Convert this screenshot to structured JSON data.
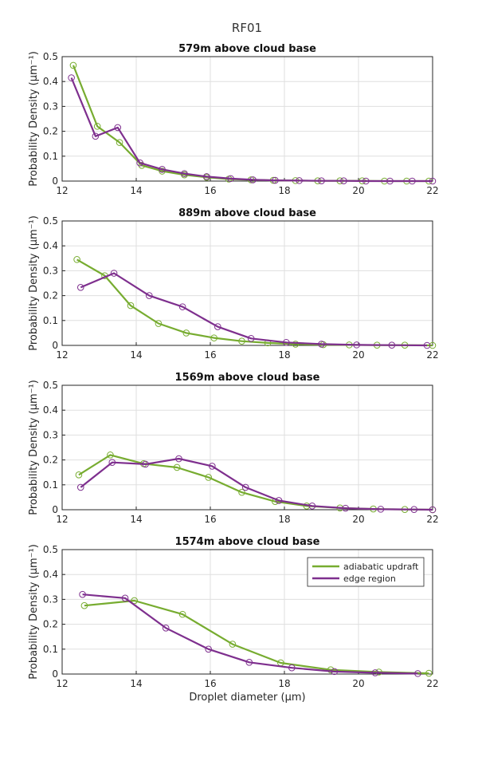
{
  "figure_title": "RF01",
  "chart_data": [
    {
      "type": "line",
      "title": "579m above cloud base",
      "ylabel": "Probability Density (μm⁻¹)",
      "xlabel": "",
      "xlim": [
        12,
        22
      ],
      "ylim": [
        0,
        0.5
      ],
      "xticks": [
        "12",
        "14",
        "16",
        "18",
        "20",
        "22"
      ],
      "yticks": [
        "0",
        "0.1",
        "0.2",
        "0.3",
        "0.4",
        "0.5"
      ],
      "grid": true,
      "series": [
        {
          "color": "#77AC30",
          "x": [
            12.3,
            12.95,
            13.55,
            14.15,
            14.7,
            15.3,
            15.9,
            16.5,
            17.1,
            17.7,
            18.3,
            18.9,
            19.5,
            20.1,
            20.7,
            21.3,
            21.9
          ],
          "y": [
            0.465,
            0.22,
            0.155,
            0.063,
            0.04,
            0.025,
            0.015,
            0.008,
            0.005,
            0.003,
            0.002,
            0.001,
            0.001,
            0.001,
            0.0,
            0.0,
            0.0
          ]
        },
        {
          "color": "#7E2F8E",
          "x": [
            12.25,
            12.9,
            13.5,
            14.1,
            14.7,
            15.3,
            15.9,
            16.55,
            17.15,
            17.75,
            18.4,
            19.0,
            19.6,
            20.2,
            20.85,
            21.45,
            22.0
          ],
          "y": [
            0.415,
            0.18,
            0.215,
            0.073,
            0.047,
            0.03,
            0.018,
            0.01,
            0.005,
            0.003,
            0.002,
            0.001,
            0.001,
            0.0,
            0.0,
            0.0,
            0.0
          ]
        }
      ]
    },
    {
      "type": "line",
      "title": "889m above cloud base",
      "ylabel": "Probability Density (μm⁻¹)",
      "xlabel": "",
      "xlim": [
        12,
        22
      ],
      "ylim": [
        0,
        0.5
      ],
      "xticks": [
        "12",
        "14",
        "16",
        "18",
        "20",
        "22"
      ],
      "yticks": [
        "0",
        "0.1",
        "0.2",
        "0.3",
        "0.4",
        "0.5"
      ],
      "grid": true,
      "series": [
        {
          "color": "#77AC30",
          "x": [
            12.4,
            13.15,
            13.85,
            14.6,
            15.35,
            16.1,
            16.85,
            17.55,
            18.3,
            19.05,
            19.75,
            20.5,
            21.25,
            22.0
          ],
          "y": [
            0.345,
            0.28,
            0.16,
            0.088,
            0.05,
            0.03,
            0.017,
            0.01,
            0.005,
            0.003,
            0.002,
            0.001,
            0.001,
            0.0
          ]
        },
        {
          "color": "#7E2F8E",
          "x": [
            12.5,
            13.4,
            14.35,
            15.25,
            16.2,
            17.1,
            18.05,
            19.0,
            19.95,
            20.9,
            21.85
          ],
          "y": [
            0.233,
            0.29,
            0.2,
            0.155,
            0.075,
            0.028,
            0.012,
            0.005,
            0.002,
            0.001,
            0.0
          ]
        }
      ]
    },
    {
      "type": "line",
      "title": "1569m above cloud base",
      "ylabel": "Probability Density (μm⁻¹)",
      "xlabel": "",
      "xlim": [
        12,
        22
      ],
      "ylim": [
        0,
        0.5
      ],
      "xticks": [
        "12",
        "14",
        "16",
        "18",
        "20",
        "22"
      ],
      "yticks": [
        "0",
        "0.1",
        "0.2",
        "0.3",
        "0.4",
        "0.5"
      ],
      "grid": true,
      "series": [
        {
          "color": "#77AC30",
          "x": [
            12.45,
            13.3,
            14.2,
            15.1,
            15.95,
            16.85,
            17.75,
            18.6,
            19.5,
            20.4,
            21.25,
            22.0
          ],
          "y": [
            0.14,
            0.22,
            0.185,
            0.17,
            0.13,
            0.07,
            0.033,
            0.015,
            0.007,
            0.003,
            0.001,
            0.0
          ]
        },
        {
          "color": "#7E2F8E",
          "x": [
            12.5,
            13.35,
            14.25,
            15.15,
            16.05,
            16.95,
            17.85,
            18.75,
            19.65,
            20.6,
            21.5,
            22.0
          ],
          "y": [
            0.09,
            0.19,
            0.183,
            0.205,
            0.175,
            0.09,
            0.037,
            0.015,
            0.006,
            0.002,
            0.001,
            0.0
          ]
        }
      ]
    },
    {
      "type": "line",
      "title": "1574m above cloud base",
      "ylabel": "Probability Density (μm⁻¹)",
      "xlabel": "Droplet diameter (μm)",
      "xlim": [
        12,
        22
      ],
      "ylim": [
        0,
        0.5
      ],
      "xticks": [
        "12",
        "14",
        "16",
        "18",
        "20",
        "22"
      ],
      "yticks": [
        "0",
        "0.1",
        "0.2",
        "0.3",
        "0.4",
        "0.5"
      ],
      "grid": true,
      "legend": {
        "position": "top-right",
        "entries": [
          "adiabatic updraft",
          "edge region"
        ]
      },
      "series": [
        {
          "name": "adiabatic updraft",
          "color": "#77AC30",
          "x": [
            12.6,
            13.95,
            15.25,
            16.6,
            17.9,
            19.25,
            20.55,
            21.9
          ],
          "y": [
            0.275,
            0.295,
            0.24,
            0.12,
            0.045,
            0.017,
            0.008,
            0.003
          ]
        },
        {
          "name": "edge region",
          "color": "#7E2F8E",
          "x": [
            12.55,
            13.7,
            14.8,
            15.95,
            17.05,
            18.2,
            19.35,
            20.45,
            21.6
          ],
          "y": [
            0.32,
            0.305,
            0.185,
            0.1,
            0.047,
            0.025,
            0.01,
            0.005,
            0.002
          ]
        }
      ]
    }
  ]
}
